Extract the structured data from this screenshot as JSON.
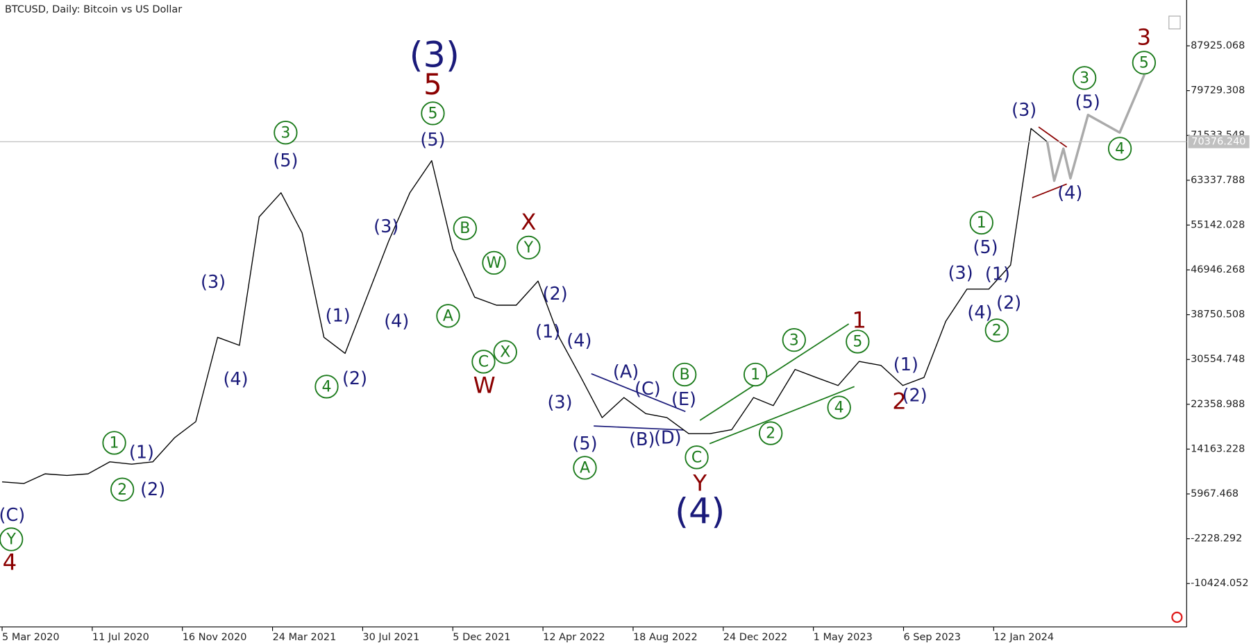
{
  "chart_data": {
    "type": "line",
    "title": "BTCUSD, Daily:  Bitcoin vs US Dollar",
    "series": [
      {
        "color": "#000000",
        "x": [
          "2020-03-05",
          "2020-04-05",
          "2020-05-05",
          "2020-06-05",
          "2020-07-05",
          "2020-08-05",
          "2020-09-05",
          "2020-10-05",
          "2020-11-05",
          "2020-12-05",
          "2021-01-05",
          "2021-02-05",
          "2021-03-05",
          "2021-04-05",
          "2021-05-05",
          "2021-06-05",
          "2021-07-05",
          "2021-08-05",
          "2021-09-05",
          "2021-10-05",
          "2021-11-05",
          "2021-12-05",
          "2022-01-05",
          "2022-02-05",
          "2022-03-05",
          "2022-04-05",
          "2022-05-05",
          "2022-06-05",
          "2022-07-05",
          "2022-08-05",
          "2022-09-05",
          "2022-10-05",
          "2022-11-05",
          "2022-12-05",
          "2023-01-05",
          "2023-02-05",
          "2023-03-05",
          "2023-04-05",
          "2023-05-05",
          "2023-06-05",
          "2023-07-05",
          "2023-08-05",
          "2023-09-05",
          "2023-10-05",
          "2023-11-05",
          "2023-12-05",
          "2024-01-05",
          "2024-02-05",
          "2024-03-05",
          "2024-03-28"
        ],
        "values": [
          8169,
          7876,
          9638,
          9344,
          9638,
          11841,
          11401,
          11841,
          16248,
          19185,
          34608,
          33139,
          56640,
          61046,
          53702,
          34608,
          31670,
          41952,
          52233,
          61046,
          66921,
          50764,
          41952,
          40483,
          40483,
          44889,
          34608,
          27264,
          19920,
          23592,
          20654,
          19920,
          16982,
          16982,
          17716,
          23592,
          22123,
          28732,
          27264,
          25795,
          30201,
          29467,
          25795,
          27264,
          37545,
          43420,
          43420,
          47827,
          72796,
          70376.24
        ]
      },
      {
        "color": "#aaaaaa",
        "x": [
          "2024-03-28",
          "2024-04-07",
          "2024-04-20",
          "2024-04-30",
          "2024-05-25",
          "2024-07-09",
          "2024-08-13"
        ],
        "values": [
          70376.24,
          63249,
          69124,
          63690,
          75293,
          72062,
          82637
        ]
      }
    ],
    "last_price": {
      "value": 70376.24,
      "label": "70376.240"
    },
    "xlim": [
      "2020-03-02",
      "2024-10-12"
    ],
    "xticks": [
      {
        "value": "2020-03-05",
        "label": "5 Mar 2020"
      },
      {
        "value": "2020-07-11",
        "label": "11 Jul 2020"
      },
      {
        "value": "2020-11-16",
        "label": "16 Nov 2020"
      },
      {
        "value": "2021-03-24",
        "label": "24 Mar 2021"
      },
      {
        "value": "2021-07-30",
        "label": "30 Jul 2021"
      },
      {
        "value": "2021-12-05",
        "label": "5 Dec 2021"
      },
      {
        "value": "2022-04-12",
        "label": "12 Apr 2022"
      },
      {
        "value": "2022-08-18",
        "label": "18 Aug 2022"
      },
      {
        "value": "2022-12-24",
        "label": "24 Dec 2022"
      },
      {
        "value": "2023-05-01",
        "label": "1 May 2023"
      },
      {
        "value": "2023-09-06",
        "label": "6 Sep 2023"
      },
      {
        "value": "2024-01-12",
        "label": "12 Jan 2024"
      }
    ],
    "ylim": [
      -18362,
      96305
    ],
    "yticks": [
      87925.068,
      79729.308,
      71533.548,
      63337.788,
      55142.028,
      46946.268,
      38750.508,
      30554.748,
      22358.988,
      14163.228,
      5967.468,
      -2228.292,
      -10424.052
    ],
    "annotations": [
      "(C)",
      "(1)",
      "(2)",
      "(3)",
      "(4)",
      "(5)",
      "(1)",
      "(2)",
      "(3)",
      "(4)",
      "(5)",
      "(2)",
      "(1)",
      "(4)",
      "(3)",
      "(5)",
      "(A)",
      "(C)",
      "(E)",
      "(B)",
      "(D)",
      "(1)",
      "(2)",
      "(3)",
      "(5)",
      "(1)",
      "(4)",
      "(2)",
      "(3)",
      "(5)",
      "(4)",
      "(3)",
      "(4)",
      "5",
      "X",
      "W",
      "Y",
      "1",
      "2",
      "3",
      "4",
      "Y",
      "1",
      "2",
      "3",
      "4",
      "5",
      "A",
      "B",
      "C",
      "X",
      "W",
      "Y",
      "A",
      "B",
      "C",
      "1",
      "2",
      "3",
      "4",
      "5",
      "1",
      "2",
      "3",
      "4",
      "5"
    ]
  }
}
